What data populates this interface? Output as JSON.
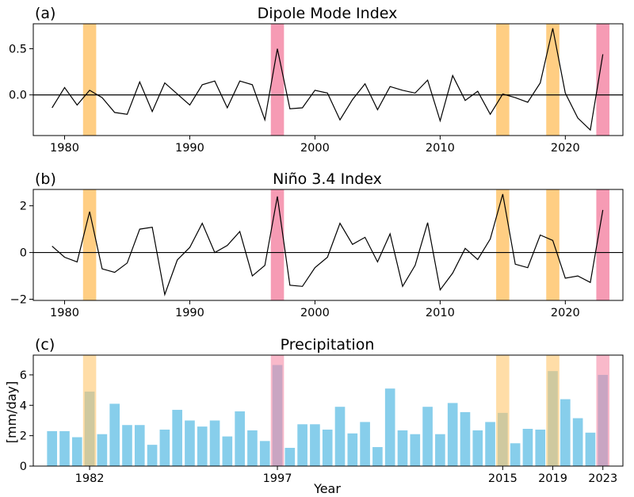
{
  "chart_data": [
    {
      "type": "line",
      "panel_label": "(a)",
      "title": "Dipole Mode Index",
      "x": [
        1979,
        1980,
        1981,
        1982,
        1983,
        1984,
        1985,
        1986,
        1987,
        1988,
        1989,
        1990,
        1991,
        1992,
        1993,
        1994,
        1995,
        1996,
        1997,
        1998,
        1999,
        2000,
        2001,
        2002,
        2003,
        2004,
        2005,
        2006,
        2007,
        2008,
        2009,
        2010,
        2011,
        2012,
        2013,
        2014,
        2015,
        2016,
        2017,
        2018,
        2019,
        2020,
        2021,
        2022,
        2023
      ],
      "values": [
        -0.14,
        0.08,
        -0.11,
        0.05,
        -0.03,
        -0.19,
        -0.21,
        0.14,
        -0.18,
        0.13,
        0.01,
        -0.11,
        0.11,
        0.15,
        -0.14,
        0.15,
        0.11,
        -0.27,
        0.5,
        -0.15,
        -0.14,
        0.05,
        0.02,
        -0.27,
        -0.05,
        0.12,
        -0.16,
        0.09,
        0.05,
        0.02,
        0.16,
        -0.28,
        0.21,
        -0.06,
        0.04,
        -0.21,
        0.01,
        -0.03,
        -0.08,
        0.13,
        0.72,
        0.02,
        -0.25,
        -0.38,
        0.44
      ],
      "xlim": [
        1977.5,
        1924.6
      ],
      "ylim": [
        -0.44,
        0.77
      ],
      "xticks": [
        1980,
        1990,
        2000,
        2010,
        2020
      ],
      "yticks": [
        0.5,
        0.0
      ],
      "ytick_labels": [
        "0.5",
        "0.0"
      ],
      "zero_line": true,
      "highlights": [
        {
          "year": 1982,
          "color": "#ffc66d"
        },
        {
          "year": 1997,
          "color": "#f58aa7"
        },
        {
          "year": 2015,
          "color": "#ffc66d"
        },
        {
          "year": 2019,
          "color": "#ffc66d"
        },
        {
          "year": 2023,
          "color": "#f58aa7"
        }
      ],
      "line_color": "#000000"
    },
    {
      "type": "line",
      "panel_label": "(b)",
      "title": "Niño 3.4 Index",
      "x": [
        1979,
        1980,
        1981,
        1982,
        1983,
        1984,
        1985,
        1986,
        1987,
        1988,
        1989,
        1990,
        1991,
        1992,
        1993,
        1994,
        1995,
        1996,
        1997,
        1998,
        1999,
        2000,
        2001,
        2002,
        2003,
        2004,
        2005,
        2006,
        2007,
        2008,
        2009,
        2010,
        2011,
        2012,
        2013,
        2014,
        2015,
        2016,
        2017,
        2018,
        2019,
        2020,
        2021,
        2022,
        2023
      ],
      "values": [
        0.27,
        -0.2,
        -0.4,
        1.75,
        -0.7,
        -0.85,
        -0.45,
        1.0,
        1.08,
        -1.8,
        -0.32,
        0.22,
        1.25,
        0.0,
        0.3,
        0.9,
        -1.0,
        -0.55,
        2.4,
        -1.4,
        -1.45,
        -0.65,
        -0.2,
        1.25,
        0.35,
        0.65,
        -0.4,
        0.8,
        -1.45,
        -0.55,
        1.28,
        -1.6,
        -0.88,
        0.18,
        -0.3,
        0.58,
        2.5,
        -0.5,
        -0.65,
        0.75,
        0.52,
        -1.1,
        -1.0,
        -1.28,
        1.82
      ],
      "xlim": [
        1977.5,
        2024.6
      ],
      "ylim": [
        -2.05,
        2.7
      ],
      "xticks": [
        1980,
        1990,
        2000,
        2010,
        2020
      ],
      "yticks": [
        2,
        0,
        -2
      ],
      "ytick_labels": [
        "2",
        "0",
        "−2"
      ],
      "zero_line": true,
      "highlights": [
        {
          "year": 1982,
          "color": "#ffc66d"
        },
        {
          "year": 1997,
          "color": "#f58aa7"
        },
        {
          "year": 2015,
          "color": "#ffc66d"
        },
        {
          "year": 2019,
          "color": "#ffc66d"
        },
        {
          "year": 2023,
          "color": "#f58aa7"
        }
      ],
      "line_color": "#000000"
    },
    {
      "type": "bar",
      "panel_label": "(c)",
      "title": "Precipitation",
      "ylabel": "[mm/day]",
      "xlabel": "Year",
      "x": [
        1979,
        1980,
        1981,
        1982,
        1983,
        1984,
        1985,
        1986,
        1987,
        1988,
        1989,
        1990,
        1991,
        1992,
        1993,
        1994,
        1995,
        1996,
        1997,
        1998,
        1999,
        2000,
        2001,
        2002,
        2003,
        2004,
        2005,
        2006,
        2007,
        2008,
        2009,
        2010,
        2011,
        2012,
        2013,
        2014,
        2015,
        2016,
        2017,
        2018,
        2019,
        2020,
        2021,
        2022,
        2023
      ],
      "values": [
        2.3,
        2.3,
        1.9,
        4.9,
        2.1,
        4.1,
        2.7,
        2.7,
        1.4,
        2.4,
        3.7,
        3.0,
        2.6,
        3.0,
        1.95,
        3.6,
        2.35,
        1.65,
        6.65,
        1.2,
        2.75,
        2.75,
        2.4,
        3.9,
        2.15,
        2.9,
        1.25,
        5.1,
        2.35,
        2.1,
        3.9,
        2.1,
        4.15,
        3.55,
        2.35,
        2.9,
        3.5,
        1.5,
        2.45,
        2.4,
        6.25,
        4.4,
        3.15,
        2.2,
        6.0
      ],
      "xlim": [
        1977.5,
        2024.6
      ],
      "ylim": [
        0,
        7.3
      ],
      "xticks": [
        1982,
        1997,
        2015,
        2019,
        2023
      ],
      "yticks": [
        0,
        2,
        4,
        6
      ],
      "ytick_labels": [
        "0",
        "2",
        "4",
        "6"
      ],
      "bar_color": "#87ceeb",
      "highlights": [
        {
          "year": 1982,
          "color": "#ffc66d"
        },
        {
          "year": 1997,
          "color": "#f58aa7"
        },
        {
          "year": 2015,
          "color": "#ffc66d"
        },
        {
          "year": 2019,
          "color": "#ffc66d"
        },
        {
          "year": 2023,
          "color": "#f58aa7"
        }
      ]
    }
  ]
}
